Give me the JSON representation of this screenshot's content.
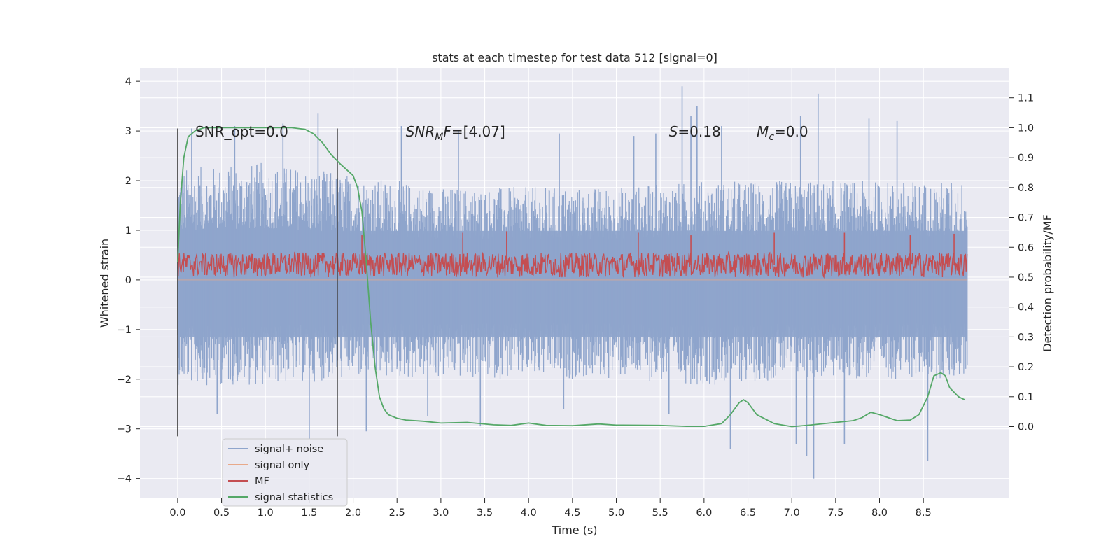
{
  "chart_data": {
    "type": "line",
    "title": "stats at each timestep for test data 512 [signal=0]",
    "xlabel": "Time (s)",
    "ylabel": "Whitened strain",
    "ylabel_right": "Detection probability/MF",
    "xlim": [
      -0.43,
      9.48
    ],
    "ylim": [
      -4.4,
      4.27
    ],
    "ylim_right": [
      -0.24,
      1.2
    ],
    "xticks": [
      "0.0",
      "0.5",
      "1.0",
      "1.5",
      "2.0",
      "2.5",
      "3.0",
      "3.5",
      "4.0",
      "4.5",
      "5.0",
      "5.5",
      "6.0",
      "6.5",
      "7.0",
      "7.5",
      "8.0",
      "8.5"
    ],
    "xtick_values": [
      0.0,
      0.5,
      1.0,
      1.5,
      2.0,
      2.5,
      3.0,
      3.5,
      4.0,
      4.5,
      5.0,
      5.5,
      6.0,
      6.5,
      7.0,
      7.5,
      8.0,
      8.5
    ],
    "yticks": [
      "4",
      "3",
      "2",
      "1",
      "0",
      "−1",
      "−2",
      "−3",
      "−4"
    ],
    "ytick_values": [
      4,
      3,
      2,
      1,
      0,
      -1,
      -2,
      -3,
      -4
    ],
    "yticks_right": [
      "0.0",
      "0.1",
      "0.2",
      "0.3",
      "0.4",
      "0.5",
      "0.6",
      "0.7",
      "0.8",
      "0.9",
      "1.0",
      "1.1"
    ],
    "ytick_right_values": [
      0.0,
      0.1,
      0.2,
      0.3,
      0.4,
      0.5,
      0.6,
      0.7,
      0.8,
      0.9,
      1.0,
      1.1
    ],
    "grid": true,
    "legend_position": "lower-left",
    "series": [
      {
        "name": "signal+ noise",
        "color": "#8fa5cc",
        "axis": "left",
        "style": "noise-band",
        "x_range": [
          0.0,
          9.0
        ],
        "envelope_upper": [
          [
            0.0,
            1.8
          ],
          [
            1.0,
            1.9
          ],
          [
            2.0,
            1.7
          ],
          [
            2.5,
            1.6
          ],
          [
            3.0,
            1.5
          ],
          [
            4.0,
            1.5
          ],
          [
            5.0,
            1.5
          ],
          [
            6.0,
            1.6
          ],
          [
            7.0,
            1.6
          ],
          [
            8.0,
            1.6
          ],
          [
            9.0,
            1.6
          ]
        ],
        "envelope_lower": [
          [
            0.0,
            -1.7
          ],
          [
            1.0,
            -1.7
          ],
          [
            2.0,
            -1.6
          ],
          [
            3.0,
            -1.6
          ],
          [
            4.0,
            -1.6
          ],
          [
            5.0,
            -1.6
          ],
          [
            6.0,
            -1.7
          ],
          [
            7.0,
            -1.6
          ],
          [
            8.0,
            -1.6
          ],
          [
            9.0,
            -1.6
          ]
        ],
        "peaks": [
          [
            0.16,
            3.05
          ],
          [
            0.65,
            3.1
          ],
          [
            1.2,
            3.15
          ],
          [
            1.6,
            3.35
          ],
          [
            2.55,
            3.1
          ],
          [
            3.2,
            3.0
          ],
          [
            4.35,
            2.95
          ],
          [
            5.2,
            2.9
          ],
          [
            5.45,
            2.95
          ],
          [
            5.75,
            3.9
          ],
          [
            5.85,
            3.3
          ],
          [
            5.92,
            3.5
          ],
          [
            6.2,
            3.1
          ],
          [
            7.1,
            3.3
          ],
          [
            7.3,
            3.75
          ],
          [
            7.88,
            3.25
          ],
          [
            8.2,
            3.2
          ],
          [
            0.45,
            -2.7
          ],
          [
            1.5,
            -3.2
          ],
          [
            2.15,
            -3.05
          ],
          [
            2.85,
            -2.75
          ],
          [
            3.45,
            -2.95
          ],
          [
            4.4,
            -2.6
          ],
          [
            5.6,
            -2.7
          ],
          [
            6.3,
            -3.4
          ],
          [
            7.05,
            -3.3
          ],
          [
            7.17,
            -3.55
          ],
          [
            7.25,
            -4.0
          ],
          [
            7.6,
            -3.3
          ],
          [
            8.55,
            -3.65
          ]
        ]
      },
      {
        "name": "signal only",
        "color": "#e8a98a",
        "axis": "left",
        "x": [
          0.0,
          9.0
        ],
        "y": [
          0.0,
          0.0
        ]
      },
      {
        "name": "MF",
        "color": "#c44e52",
        "axis": "left",
        "style": "noise-band",
        "x_range": [
          0.0,
          9.0
        ],
        "baseline_range": [
          0.05,
          0.55
        ],
        "peaks": [
          [
            2.1,
            0.9
          ],
          [
            3.25,
            0.95
          ],
          [
            3.75,
            0.98
          ],
          [
            5.25,
            0.95
          ],
          [
            5.85,
            0.9
          ],
          [
            6.8,
            0.95
          ],
          [
            7.6,
            0.95
          ],
          [
            8.35,
            0.9
          ],
          [
            8.85,
            0.93
          ]
        ]
      },
      {
        "name": "signal statistics",
        "color": "#55a868",
        "axis": "right",
        "x": [
          0.0,
          0.03,
          0.07,
          0.12,
          0.2,
          0.3,
          0.5,
          0.8,
          1.0,
          1.3,
          1.45,
          1.55,
          1.65,
          1.75,
          1.85,
          2.0,
          2.05,
          2.1,
          2.15,
          2.2,
          2.25,
          2.3,
          2.35,
          2.4,
          2.5,
          2.6,
          2.8,
          3.0,
          3.3,
          3.6,
          3.8,
          4.0,
          4.2,
          4.5,
          4.8,
          5.0,
          5.5,
          5.8,
          6.0,
          6.2,
          6.3,
          6.4,
          6.45,
          6.5,
          6.6,
          6.8,
          7.0,
          7.2,
          7.5,
          7.7,
          7.8,
          7.9,
          8.0,
          8.2,
          8.35,
          8.45,
          8.55,
          8.62,
          8.7,
          8.75,
          8.8,
          8.9,
          8.97
        ],
        "y": [
          0.55,
          0.75,
          0.9,
          0.97,
          0.99,
          1.0,
          1.0,
          1.0,
          1.0,
          1.0,
          0.995,
          0.98,
          0.95,
          0.91,
          0.88,
          0.84,
          0.8,
          0.72,
          0.55,
          0.35,
          0.2,
          0.1,
          0.06,
          0.04,
          0.028,
          0.022,
          0.018,
          0.012,
          0.014,
          0.006,
          0.004,
          0.012,
          0.004,
          0.003,
          0.009,
          0.005,
          0.004,
          0.001,
          0.001,
          0.01,
          0.04,
          0.08,
          0.09,
          0.08,
          0.04,
          0.01,
          0.0,
          0.005,
          0.014,
          0.02,
          0.03,
          0.048,
          0.04,
          0.02,
          0.022,
          0.04,
          0.1,
          0.17,
          0.18,
          0.17,
          0.13,
          0.1,
          0.09
        ]
      }
    ],
    "vertical_lines": [
      0.0,
      1.82
    ],
    "vertical_lines_ylim": [
      -3.15,
      3.05
    ],
    "annotations": [
      {
        "id": "snr_opt",
        "text": "SNR_opt=0.0",
        "x": 0.2,
        "y": 2.99
      },
      {
        "id": "snr_mf",
        "text": "SNR_MF=[4.07]",
        "x": 2.6,
        "y": 2.99
      },
      {
        "id": "s_value",
        "text": "S=0.18",
        "x": 5.6,
        "y": 2.99
      },
      {
        "id": "mc_value",
        "text": "M_c=0.0",
        "x": 6.6,
        "y": 2.99
      }
    ],
    "annotation_parts": {
      "snr_opt": "SNR_opt=0.0",
      "snr_mf_main": "SNR",
      "snr_mf_sub": "M",
      "snr_mf_tail": "F",
      "snr_mf_value": "=[4.07]",
      "s_main": "S",
      "s_value": "=0.18",
      "mc_main": "M",
      "mc_sub": "c",
      "mc_value": "=0.0"
    },
    "legend": [
      {
        "label": "signal+ noise",
        "color": "#8fa5cc"
      },
      {
        "label": "signal only",
        "color": "#e8a98a"
      },
      {
        "label": "MF",
        "color": "#c44e52"
      },
      {
        "label": "signal statistics",
        "color": "#55a868"
      }
    ],
    "colors": {
      "plot_background": "#eaeaf2",
      "grid": "#ffffff",
      "vertical_line": "#444444",
      "legend_background": "#eaeaf2",
      "legend_border": "#cccccc"
    }
  }
}
